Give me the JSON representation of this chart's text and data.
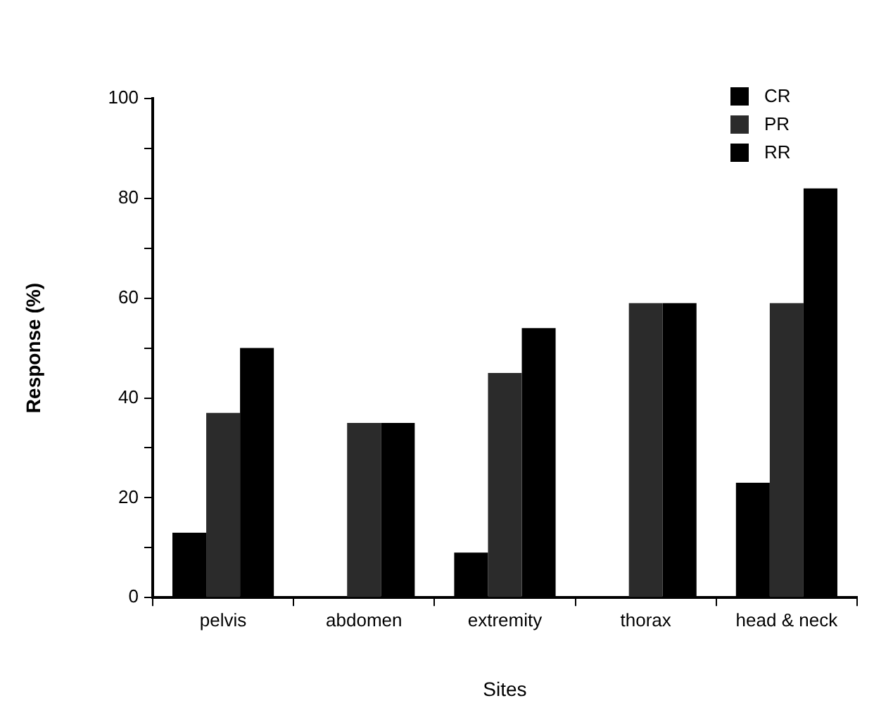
{
  "chart_data": {
    "type": "bar",
    "xlabel": "Sites",
    "ylabel": "Response (%)",
    "categories": [
      "pelvis",
      "abdomen",
      "extremity",
      "thorax",
      "head & neck"
    ],
    "series": [
      {
        "name": "CR",
        "color": "#000000",
        "values": [
          13,
          0,
          9,
          0,
          23
        ]
      },
      {
        "name": "PR",
        "color": "#2b2b2b",
        "values": [
          37,
          35,
          45,
          59,
          59
        ]
      },
      {
        "name": "RR",
        "color": "#000000",
        "values": [
          50,
          35,
          54,
          59,
          82
        ]
      }
    ],
    "ylim": [
      0,
      100
    ],
    "yticks": [
      0,
      {
        "value": 10,
        "label": null
      },
      20,
      {
        "value": 30,
        "label": null
      },
      40,
      {
        "value": 50,
        "label": null
      },
      60,
      {
        "value": 70,
        "label": null
      },
      80,
      {
        "value": 90,
        "label": null
      },
      100
    ],
    "grid": false,
    "legend": "top right"
  }
}
